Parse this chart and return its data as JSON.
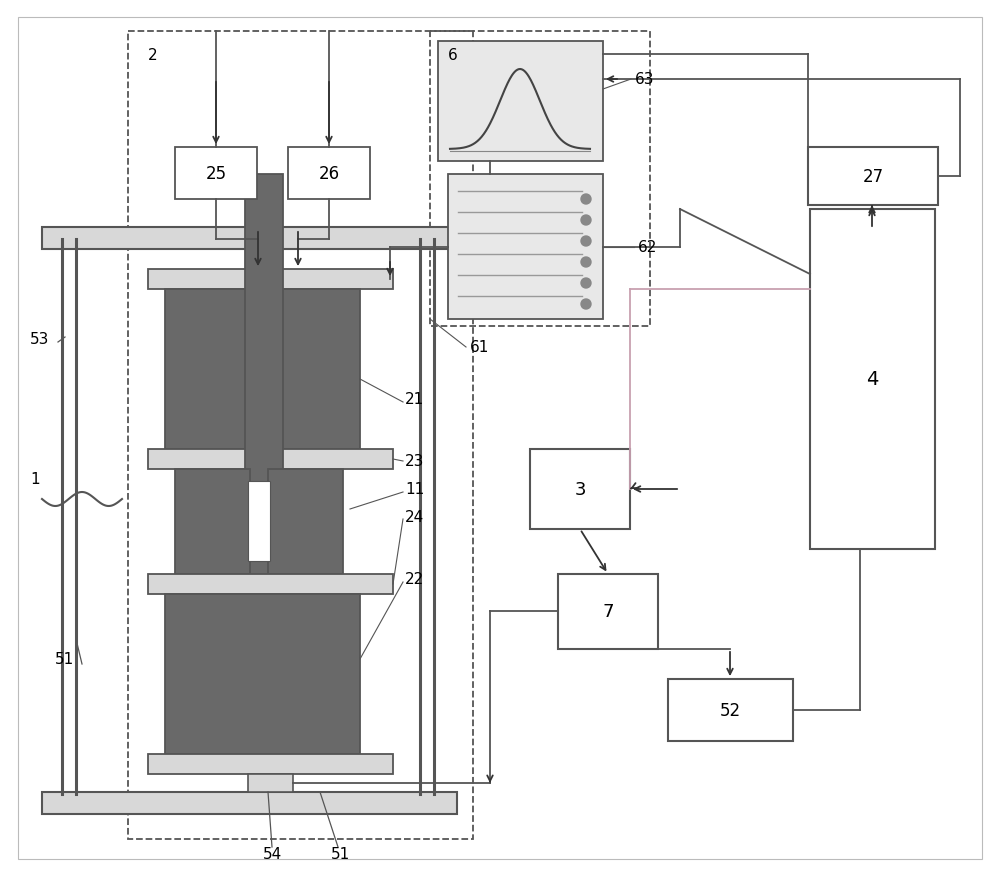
{
  "bg_color": "#ffffff",
  "lc": "#555555",
  "dc": "#696969",
  "lf": "#d8d8d8",
  "ac": "#333333",
  "pk": "#c8a0b0"
}
